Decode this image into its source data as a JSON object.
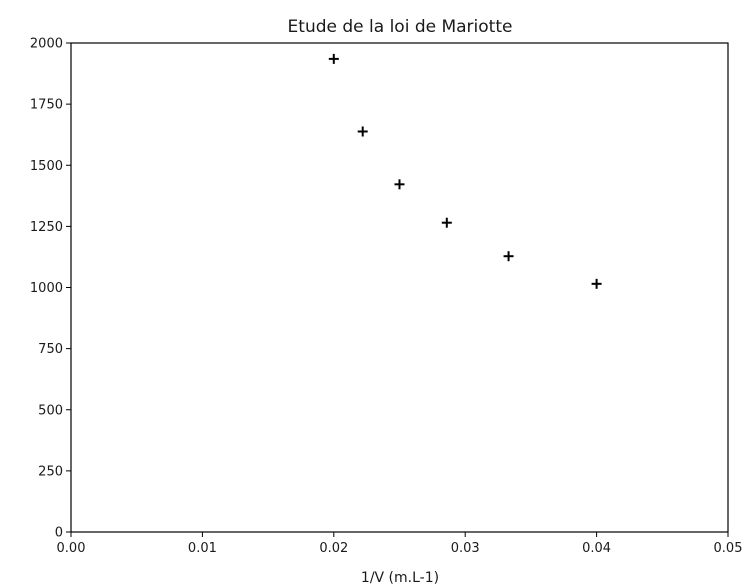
{
  "chart_data": {
    "type": "scatter",
    "title": "Etude de la loi de Mariotte",
    "xlabel": "1/V (m.L-1)",
    "ylabel": "",
    "xlim": [
      0,
      0.05
    ],
    "ylim": [
      0,
      2000
    ],
    "x_ticks": [
      0,
      0.01,
      0.02,
      0.03,
      0.04,
      0.05
    ],
    "x_tick_labels": [
      "0.00",
      "0.01",
      "0.02",
      "0.03",
      "0.04",
      "0.05"
    ],
    "y_ticks": [
      0,
      250,
      500,
      750,
      1000,
      1250,
      1500,
      1750,
      2000
    ],
    "y_tick_labels": [
      "0",
      "250",
      "500",
      "750",
      "1000",
      "1250",
      "1500",
      "1750",
      "2000"
    ],
    "marker": "+",
    "marker_color": "#000000",
    "grid": false,
    "series": [
      {
        "points": [
          {
            "x": 0.02,
            "y": 1935
          },
          {
            "x": 0.0222,
            "y": 1638
          },
          {
            "x": 0.025,
            "y": 1422
          },
          {
            "x": 0.0286,
            "y": 1265
          },
          {
            "x": 0.0333,
            "y": 1128
          },
          {
            "x": 0.04,
            "y": 1015
          }
        ]
      }
    ]
  }
}
